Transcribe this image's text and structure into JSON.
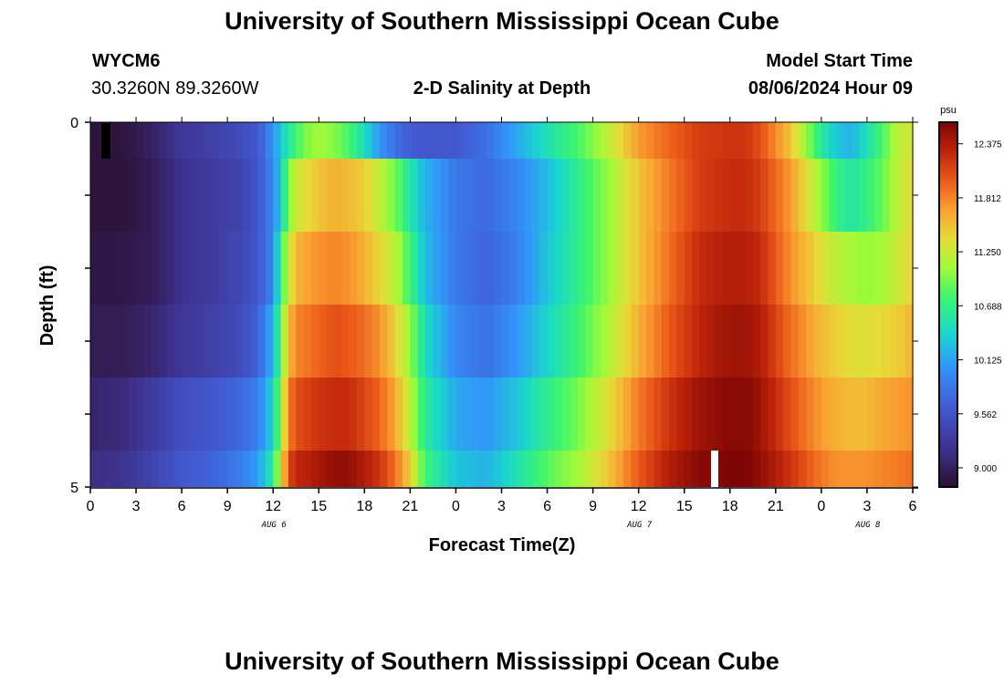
{
  "header": {
    "title": "University of Southern Mississippi Ocean Cube",
    "station_id": "WYCM6",
    "station_coords": "30.3260N  89.3260W",
    "chart_subtitle": "2-D Salinity at Depth",
    "model_start_label": "Model Start Time",
    "model_start_value": "08/06/2024 Hour 09"
  },
  "footer": {
    "title": "University of Southern Mississippi Ocean Cube"
  },
  "chart_data": {
    "type": "heatmap",
    "title": "2-D Salinity at Depth",
    "xlabel": "Forecast Time(Z)",
    "ylabel": "Depth (ft)",
    "x_tick_labels": [
      "0",
      "3",
      "6",
      "9",
      "12",
      "15",
      "18",
      "21",
      "0",
      "3",
      "6",
      "9",
      "12",
      "15",
      "18",
      "21",
      "0",
      "3",
      "6"
    ],
    "x_hours_from_aug6_00z": [
      0,
      3,
      6,
      9,
      12,
      15,
      18,
      21,
      24,
      27,
      30,
      33,
      36,
      39,
      42,
      45,
      48,
      51,
      54
    ],
    "date_labels": [
      {
        "text": "AUG 6",
        "hour": 12
      },
      {
        "text": "AUG 7",
        "hour": 36
      },
      {
        "text": "AUG 8",
        "hour": 51
      }
    ],
    "y_tick_labels": [
      "0",
      "5"
    ],
    "ylim": [
      0,
      5
    ],
    "xlim_hours": [
      0,
      54
    ],
    "depth_levels": [
      0,
      1,
      2,
      3,
      4,
      5
    ],
    "colorbar": {
      "unit": "psu",
      "labels": [
        "12.375",
        "11.812",
        "11.250",
        "10.688",
        "10.125",
        "9.562",
        "9.000"
      ],
      "min": 8.8,
      "max": 12.6
    },
    "time_key_hours": [
      0,
      2,
      4,
      6,
      8,
      10,
      11,
      12,
      12.5,
      13,
      13.5,
      14,
      15,
      16,
      17,
      18,
      19,
      20,
      21,
      22,
      24,
      26,
      28,
      30,
      32,
      34,
      36,
      38,
      40,
      42,
      43,
      44,
      46,
      48,
      49,
      50,
      51,
      52,
      53,
      54
    ],
    "salinity_psu": [
      [
        8.85,
        8.85,
        9.0,
        9.25,
        9.35,
        9.5,
        9.6,
        10.05,
        10.3,
        10.6,
        10.75,
        10.95,
        11.1,
        11.0,
        10.8,
        10.45,
        10.05,
        9.8,
        9.65,
        9.6,
        9.6,
        9.8,
        10.15,
        10.5,
        10.8,
        11.2,
        11.7,
        11.95,
        12.15,
        12.2,
        12.2,
        12.05,
        11.5,
        10.6,
        10.3,
        10.2,
        10.5,
        10.8,
        11.2,
        11.3
      ],
      [
        8.85,
        8.85,
        8.95,
        9.2,
        9.3,
        9.4,
        9.6,
        9.95,
        10.35,
        10.95,
        11.25,
        11.35,
        11.5,
        11.6,
        11.55,
        11.45,
        11.2,
        10.95,
        10.55,
        10.2,
        9.85,
        9.75,
        9.95,
        10.25,
        10.65,
        11.05,
        11.5,
        11.85,
        12.15,
        12.25,
        12.25,
        12.15,
        11.7,
        11.05,
        10.7,
        10.55,
        10.7,
        10.9,
        11.2,
        11.4
      ],
      [
        8.9,
        8.9,
        8.95,
        9.2,
        9.3,
        9.45,
        9.6,
        9.95,
        10.7,
        11.25,
        11.55,
        11.65,
        11.75,
        11.8,
        11.75,
        11.6,
        11.4,
        11.2,
        10.75,
        10.25,
        9.85,
        9.7,
        9.9,
        10.3,
        10.65,
        11.05,
        11.5,
        11.9,
        12.25,
        12.35,
        12.35,
        12.25,
        11.75,
        11.35,
        11.2,
        11.1,
        11.05,
        11.1,
        11.25,
        11.45
      ],
      [
        8.95,
        8.95,
        9.05,
        9.25,
        9.35,
        9.5,
        9.7,
        10.2,
        10.85,
        11.55,
        11.8,
        11.85,
        11.95,
        12.05,
        12.0,
        11.9,
        11.75,
        11.45,
        11.05,
        10.45,
        9.95,
        9.8,
        10.05,
        10.4,
        10.75,
        11.15,
        11.6,
        12.0,
        12.3,
        12.45,
        12.45,
        12.35,
        11.9,
        11.55,
        11.45,
        11.35,
        11.35,
        11.4,
        11.45,
        11.6
      ],
      [
        9.05,
        9.1,
        9.3,
        9.5,
        9.6,
        9.75,
        9.9,
        10.4,
        11.05,
        11.8,
        12.05,
        12.1,
        12.2,
        12.25,
        12.25,
        12.1,
        11.95,
        11.65,
        11.2,
        10.6,
        10.15,
        10.05,
        10.3,
        10.65,
        10.95,
        11.35,
        11.85,
        12.2,
        12.45,
        12.55,
        12.55,
        12.45,
        12.05,
        11.7,
        11.6,
        11.55,
        11.55,
        11.65,
        11.7,
        11.75
      ],
      [
        9.15,
        9.2,
        9.4,
        9.6,
        9.7,
        9.9,
        10.1,
        10.6,
        11.3,
        12.05,
        12.3,
        12.3,
        12.4,
        12.5,
        12.5,
        12.35,
        12.2,
        11.9,
        11.45,
        10.75,
        10.3,
        10.2,
        10.5,
        10.85,
        11.1,
        11.5,
        12.0,
        12.35,
        12.55,
        12.6,
        12.6,
        12.5,
        12.2,
        11.85,
        11.75,
        11.75,
        11.75,
        11.8,
        11.85,
        11.9
      ]
    ],
    "grid": false,
    "legend": "colorbar-right"
  }
}
